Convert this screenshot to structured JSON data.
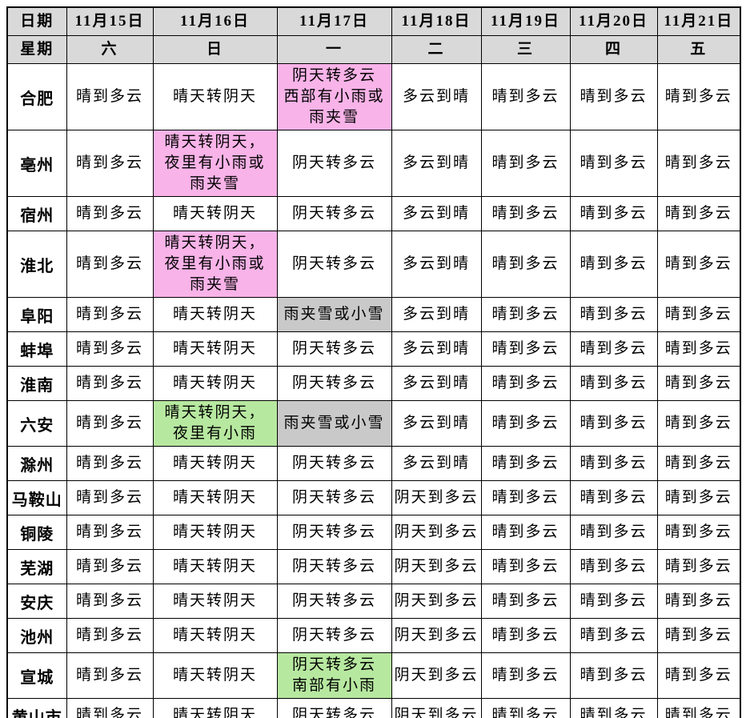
{
  "table": {
    "date_label": "日期",
    "weekday_label": "星期",
    "dates": [
      "11月15日",
      "11月16日",
      "11月17日",
      "11月18日",
      "11月19日",
      "11月20日",
      "11月21日"
    ],
    "weekdays": [
      "六",
      "日",
      "一",
      "二",
      "三",
      "四",
      "五"
    ],
    "rows": [
      {
        "city": "合肥",
        "cells": [
          {
            "text": "晴到多云"
          },
          {
            "text": "晴天转阴天"
          },
          {
            "text": "阴天转多云\n西部有小雨或\n雨夹雪",
            "hl": "pink"
          },
          {
            "text": "多云到晴"
          },
          {
            "text": "晴到多云"
          },
          {
            "text": "晴到多云"
          },
          {
            "text": "晴到多云"
          }
        ]
      },
      {
        "city": "亳州",
        "cells": [
          {
            "text": "晴到多云"
          },
          {
            "text": "晴天转阴天，\n夜里有小雨或\n雨夹雪",
            "hl": "pink"
          },
          {
            "text": "阴天转多云"
          },
          {
            "text": "多云到晴"
          },
          {
            "text": "晴到多云"
          },
          {
            "text": "晴到多云"
          },
          {
            "text": "晴到多云"
          }
        ]
      },
      {
        "city": "宿州",
        "cells": [
          {
            "text": "晴到多云"
          },
          {
            "text": "晴天转阴天"
          },
          {
            "text": "阴天转多云"
          },
          {
            "text": "多云到晴"
          },
          {
            "text": "晴到多云"
          },
          {
            "text": "晴到多云"
          },
          {
            "text": "晴到多云"
          }
        ]
      },
      {
        "city": "淮北",
        "cells": [
          {
            "text": "晴到多云"
          },
          {
            "text": "晴天转阴天，\n夜里有小雨或\n雨夹雪",
            "hl": "pink"
          },
          {
            "text": "阴天转多云"
          },
          {
            "text": "多云到晴"
          },
          {
            "text": "晴到多云"
          },
          {
            "text": "晴到多云"
          },
          {
            "text": "晴到多云"
          }
        ]
      },
      {
        "city": "阜阳",
        "cells": [
          {
            "text": "晴到多云"
          },
          {
            "text": "晴天转阴天"
          },
          {
            "text": "雨夹雪或小雪",
            "hl": "gray"
          },
          {
            "text": "多云到晴"
          },
          {
            "text": "晴到多云"
          },
          {
            "text": "晴到多云"
          },
          {
            "text": "晴到多云"
          }
        ]
      },
      {
        "city": "蚌埠",
        "cells": [
          {
            "text": "晴到多云"
          },
          {
            "text": "晴天转阴天"
          },
          {
            "text": "阴天转多云"
          },
          {
            "text": "多云到晴"
          },
          {
            "text": "晴到多云"
          },
          {
            "text": "晴到多云"
          },
          {
            "text": "晴到多云"
          }
        ]
      },
      {
        "city": "淮南",
        "cells": [
          {
            "text": "晴到多云"
          },
          {
            "text": "晴天转阴天"
          },
          {
            "text": "阴天转多云"
          },
          {
            "text": "多云到晴"
          },
          {
            "text": "晴到多云"
          },
          {
            "text": "晴到多云"
          },
          {
            "text": "晴到多云"
          }
        ]
      },
      {
        "city": "六安",
        "cells": [
          {
            "text": "晴到多云"
          },
          {
            "text": "晴天转阴天，\n夜里有小雨",
            "hl": "green"
          },
          {
            "text": "雨夹雪或小雪",
            "hl": "gray"
          },
          {
            "text": "多云到晴"
          },
          {
            "text": "晴到多云"
          },
          {
            "text": "晴到多云"
          },
          {
            "text": "晴到多云"
          }
        ]
      },
      {
        "city": "滁州",
        "cells": [
          {
            "text": "晴到多云"
          },
          {
            "text": "晴天转阴天"
          },
          {
            "text": "阴天转多云"
          },
          {
            "text": "多云到晴"
          },
          {
            "text": "晴到多云"
          },
          {
            "text": "晴到多云"
          },
          {
            "text": "晴到多云"
          }
        ]
      },
      {
        "city": "马鞍山",
        "cells": [
          {
            "text": "晴到多云"
          },
          {
            "text": "晴天转阴天"
          },
          {
            "text": "阴天转多云"
          },
          {
            "text": "阴天到多云"
          },
          {
            "text": "晴到多云"
          },
          {
            "text": "晴到多云"
          },
          {
            "text": "晴到多云"
          }
        ]
      },
      {
        "city": "铜陵",
        "cells": [
          {
            "text": "晴到多云"
          },
          {
            "text": "晴天转阴天"
          },
          {
            "text": "阴天转多云"
          },
          {
            "text": "阴天到多云"
          },
          {
            "text": "晴到多云"
          },
          {
            "text": "晴到多云"
          },
          {
            "text": "晴到多云"
          }
        ]
      },
      {
        "city": "芜湖",
        "cells": [
          {
            "text": "晴到多云"
          },
          {
            "text": "晴天转阴天"
          },
          {
            "text": "阴天转多云"
          },
          {
            "text": "阴天到多云"
          },
          {
            "text": "晴到多云"
          },
          {
            "text": "晴到多云"
          },
          {
            "text": "晴到多云"
          }
        ]
      },
      {
        "city": "安庆",
        "cells": [
          {
            "text": "晴到多云"
          },
          {
            "text": "晴天转阴天"
          },
          {
            "text": "阴天转多云"
          },
          {
            "text": "阴天到多云"
          },
          {
            "text": "晴到多云"
          },
          {
            "text": "晴到多云"
          },
          {
            "text": "晴到多云"
          }
        ]
      },
      {
        "city": "池州",
        "cells": [
          {
            "text": "晴到多云"
          },
          {
            "text": "晴天转阴天"
          },
          {
            "text": "阴天转多云"
          },
          {
            "text": "阴天到多云"
          },
          {
            "text": "晴到多云"
          },
          {
            "text": "晴到多云"
          },
          {
            "text": "晴到多云"
          }
        ]
      },
      {
        "city": "宣城",
        "cells": [
          {
            "text": "晴到多云"
          },
          {
            "text": "晴天转阴天"
          },
          {
            "text": "阴天转多云\n南部有小雨",
            "hl": "green"
          },
          {
            "text": "阴天到多云"
          },
          {
            "text": "晴到多云"
          },
          {
            "text": "晴到多云"
          },
          {
            "text": "晴到多云"
          }
        ]
      },
      {
        "city": "黄山市",
        "cells": [
          {
            "text": "晴到多云"
          },
          {
            "text": "晴天转阴天"
          },
          {
            "text": "阴天转多云"
          },
          {
            "text": "阴天到多云"
          },
          {
            "text": "晴到多云"
          },
          {
            "text": "晴到多云"
          },
          {
            "text": "晴到多云"
          }
        ]
      }
    ]
  },
  "colors": {
    "header_bg": "#d9d9d9",
    "highlight_pink": "#f8b3e8",
    "highlight_green": "#b7e8a0",
    "highlight_gray": "#c9c9c9",
    "border": "#000000",
    "text": "#000000"
  }
}
